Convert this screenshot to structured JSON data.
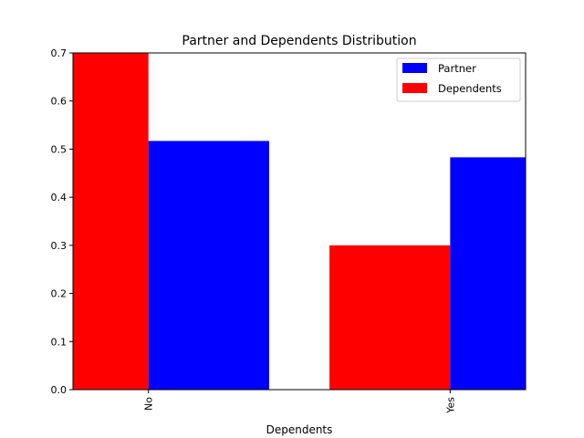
{
  "chart_data": {
    "type": "bar",
    "title": "Partner and Dependents Distribution",
    "xlabel": "Dependents",
    "ylabel": "",
    "categories": [
      "No",
      "Yes"
    ],
    "ylim": [
      0,
      0.7
    ],
    "yticks": [
      0.0,
      0.1,
      0.2,
      0.3,
      0.4,
      0.5,
      0.6,
      0.7
    ],
    "ytick_labels": [
      "0.0",
      "0.1",
      "0.2",
      "0.3",
      "0.4",
      "0.5",
      "0.6",
      "0.7"
    ],
    "grid": false,
    "legend_position": "top-right",
    "series": [
      {
        "name": "Dependents",
        "color": "#ff0000",
        "values": [
          0.7,
          0.3
        ]
      },
      {
        "name": "Partner",
        "color": "#0000ff",
        "values": [
          0.517,
          0.483
        ]
      }
    ],
    "legend": [
      {
        "label": "Partner",
        "color": "#0000ff"
      },
      {
        "label": "Dependents",
        "color": "#ff0000"
      }
    ]
  }
}
